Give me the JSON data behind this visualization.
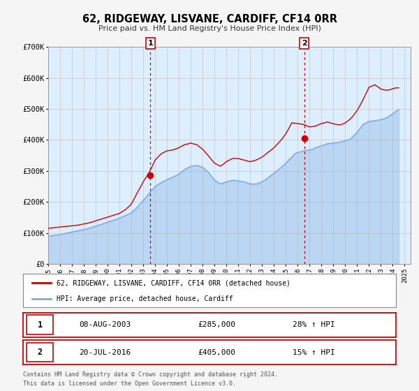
{
  "title": "62, RIDGEWAY, LISVANE, CARDIFF, CF14 0RR",
  "subtitle": "Price paid vs. HM Land Registry's House Price Index (HPI)",
  "bg_color": "#f5f5f5",
  "plot_bg_color": "#ddeeff",
  "grid_color": "#cccccc",
  "hpi_color": "#7aaadd",
  "price_color": "#cc0000",
  "marker_color": "#cc0000",
  "ylim": [
    0,
    700000
  ],
  "yticks": [
    0,
    100000,
    200000,
    300000,
    400000,
    500000,
    600000,
    700000
  ],
  "ytick_labels": [
    "£0",
    "£100K",
    "£200K",
    "£300K",
    "£400K",
    "£500K",
    "£600K",
    "£700K"
  ],
  "xlim_start": 1995.0,
  "xlim_end": 2025.5,
  "event1_x": 2003.6,
  "event1_y": 285000,
  "event1_label": "1",
  "event2_x": 2016.55,
  "event2_y": 405000,
  "event2_label": "2",
  "legend_line1": "62, RIDGEWAY, LISVANE, CARDIFF, CF14 0RR (detached house)",
  "legend_line2": "HPI: Average price, detached house, Cardiff",
  "table_row1_num": "1",
  "table_row1_date": "08-AUG-2003",
  "table_row1_price": "£285,000",
  "table_row1_hpi": "28% ↑ HPI",
  "table_row2_num": "2",
  "table_row2_date": "20-JUL-2016",
  "table_row2_price": "£405,000",
  "table_row2_hpi": "15% ↑ HPI",
  "footnote1": "Contains HM Land Registry data © Crown copyright and database right 2024.",
  "footnote2": "This data is licensed under the Open Government Licence v3.0.",
  "hpi_years": [
    1995.0,
    1995.25,
    1995.5,
    1995.75,
    1996.0,
    1996.25,
    1996.5,
    1996.75,
    1997.0,
    1997.25,
    1997.5,
    1997.75,
    1998.0,
    1998.25,
    1998.5,
    1998.75,
    1999.0,
    1999.25,
    1999.5,
    1999.75,
    2000.0,
    2000.25,
    2000.5,
    2000.75,
    2001.0,
    2001.25,
    2001.5,
    2001.75,
    2002.0,
    2002.25,
    2002.5,
    2002.75,
    2003.0,
    2003.25,
    2003.5,
    2003.75,
    2004.0,
    2004.25,
    2004.5,
    2004.75,
    2005.0,
    2005.25,
    2005.5,
    2005.75,
    2006.0,
    2006.25,
    2006.5,
    2006.75,
    2007.0,
    2007.25,
    2007.5,
    2007.75,
    2008.0,
    2008.25,
    2008.5,
    2008.75,
    2009.0,
    2009.25,
    2009.5,
    2009.75,
    2010.0,
    2010.25,
    2010.5,
    2010.75,
    2011.0,
    2011.25,
    2011.5,
    2011.75,
    2012.0,
    2012.25,
    2012.5,
    2012.75,
    2013.0,
    2013.25,
    2013.5,
    2013.75,
    2014.0,
    2014.25,
    2014.5,
    2014.75,
    2015.0,
    2015.25,
    2015.5,
    2015.75,
    2016.0,
    2016.25,
    2016.5,
    2016.75,
    2017.0,
    2017.25,
    2017.5,
    2017.75,
    2018.0,
    2018.25,
    2018.5,
    2018.75,
    2019.0,
    2019.25,
    2019.5,
    2019.75,
    2020.0,
    2020.25,
    2020.5,
    2020.75,
    2021.0,
    2021.25,
    2021.5,
    2021.75,
    2022.0,
    2022.25,
    2022.5,
    2022.75,
    2023.0,
    2023.25,
    2023.5,
    2023.75,
    2024.0,
    2024.25,
    2024.5
  ],
  "hpi_values": [
    90000,
    91000,
    92000,
    93000,
    95000,
    97000,
    99000,
    101000,
    103000,
    105000,
    107000,
    109000,
    111000,
    113000,
    116000,
    119000,
    122000,
    125000,
    128000,
    131000,
    135000,
    138000,
    141000,
    144000,
    148000,
    152000,
    156000,
    160000,
    165000,
    174000,
    183000,
    194000,
    205000,
    216000,
    228000,
    239000,
    250000,
    256000,
    262000,
    267000,
    272000,
    276000,
    280000,
    285000,
    290000,
    297000,
    305000,
    310000,
    315000,
    316000,
    318000,
    315000,
    312000,
    303000,
    295000,
    282000,
    270000,
    264000,
    258000,
    261000,
    265000,
    267000,
    270000,
    269000,
    268000,
    266000,
    265000,
    261000,
    258000,
    258000,
    258000,
    261000,
    265000,
    271000,
    278000,
    285000,
    293000,
    300000,
    308000,
    316000,
    325000,
    335000,
    345000,
    355000,
    360000,
    362000,
    365000,
    366000,
    368000,
    370000,
    375000,
    378000,
    382000,
    384000,
    388000,
    389000,
    390000,
    391000,
    392000,
    395000,
    398000,
    400000,
    405000,
    415000,
    425000,
    437000,
    450000,
    455000,
    460000,
    461000,
    462000,
    464000,
    466000,
    468000,
    472000,
    478000,
    485000,
    492000,
    498000
  ],
  "price_years": [
    1995.0,
    1995.25,
    1995.5,
    1995.75,
    1996.0,
    1996.25,
    1996.5,
    1996.75,
    1997.0,
    1997.25,
    1997.5,
    1997.75,
    1998.0,
    1998.25,
    1998.5,
    1998.75,
    1999.0,
    1999.25,
    1999.5,
    1999.75,
    2000.0,
    2000.25,
    2000.5,
    2000.75,
    2001.0,
    2001.25,
    2001.5,
    2001.75,
    2002.0,
    2002.25,
    2002.5,
    2002.75,
    2003.0,
    2003.25,
    2003.5,
    2003.75,
    2004.0,
    2004.25,
    2004.5,
    2004.75,
    2005.0,
    2005.25,
    2005.5,
    2005.75,
    2006.0,
    2006.25,
    2006.5,
    2006.75,
    2007.0,
    2007.25,
    2007.5,
    2007.75,
    2008.0,
    2008.25,
    2008.5,
    2008.75,
    2009.0,
    2009.25,
    2009.5,
    2009.75,
    2010.0,
    2010.25,
    2010.5,
    2010.75,
    2011.0,
    2011.25,
    2011.5,
    2011.75,
    2012.0,
    2012.25,
    2012.5,
    2012.75,
    2013.0,
    2013.25,
    2013.5,
    2013.75,
    2014.0,
    2014.25,
    2014.5,
    2014.75,
    2015.0,
    2015.25,
    2015.5,
    2015.75,
    2016.0,
    2016.25,
    2016.5,
    2016.75,
    2017.0,
    2017.25,
    2017.5,
    2017.75,
    2018.0,
    2018.25,
    2018.5,
    2018.75,
    2019.0,
    2019.25,
    2019.5,
    2019.75,
    2020.0,
    2020.25,
    2020.5,
    2020.75,
    2021.0,
    2021.25,
    2021.5,
    2021.75,
    2022.0,
    2022.25,
    2022.5,
    2022.75,
    2023.0,
    2023.25,
    2023.5,
    2023.75,
    2024.0,
    2024.25,
    2024.5
  ],
  "price_values": [
    115000,
    116000,
    117000,
    118000,
    119000,
    120000,
    121000,
    122000,
    123000,
    124000,
    125000,
    127000,
    129000,
    131000,
    133000,
    136000,
    139000,
    142000,
    145000,
    148000,
    151000,
    154000,
    157000,
    160000,
    163000,
    169000,
    175000,
    184000,
    193000,
    211000,
    230000,
    247000,
    265000,
    280000,
    295000,
    315000,
    335000,
    345000,
    355000,
    360000,
    365000,
    366000,
    368000,
    371000,
    375000,
    380000,
    385000,
    387000,
    390000,
    387000,
    385000,
    377000,
    370000,
    359000,
    348000,
    336000,
    325000,
    320000,
    315000,
    322000,
    330000,
    335000,
    340000,
    340000,
    340000,
    337000,
    335000,
    332000,
    330000,
    332000,
    335000,
    340000,
    345000,
    352000,
    360000,
    367000,
    375000,
    385000,
    395000,
    407000,
    420000,
    437000,
    455000,
    454000,
    453000,
    451000,
    450000,
    446000,
    442000,
    443000,
    445000,
    449000,
    453000,
    455000,
    458000,
    455000,
    452000,
    450000,
    448000,
    451000,
    455000,
    462000,
    470000,
    482000,
    495000,
    512000,
    530000,
    550000,
    570000,
    574000,
    578000,
    571000,
    564000,
    562000,
    560000,
    562000,
    565000,
    568000,
    568000
  ]
}
